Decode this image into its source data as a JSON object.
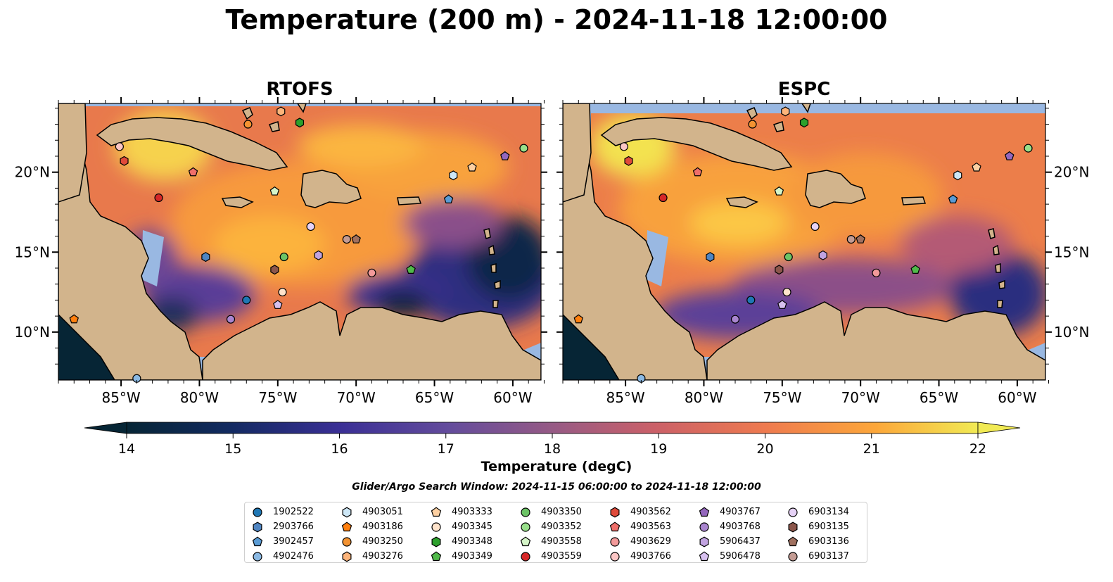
{
  "figure": {
    "title": "Temperature (200 m) - 2024-11-18 12:00:00",
    "panels": [
      {
        "title": "RTOFS"
      },
      {
        "title": "ESPC"
      }
    ],
    "x_ticks": [
      "85°W",
      "80°W",
      "75°W",
      "70°W",
      "65°W",
      "60°W"
    ],
    "y_ticks": [
      "20°N",
      "15°N",
      "10°N"
    ],
    "extent": {
      "lon": [
        -89.0,
        -58.2
      ],
      "lat": [
        7.0,
        24.3
      ]
    },
    "colorbar": {
      "label": "Temperature (degC)",
      "ticks": [
        "14",
        "15",
        "16",
        "17",
        "18",
        "19",
        "20",
        "21",
        "22"
      ],
      "range": [
        14,
        22
      ]
    },
    "search_window": "Glider/Argo Search Window: 2024-11-15 06:00:00 to 2024-11-18 12:00:00",
    "colors": {
      "land": "#d2b48c",
      "no_data": "#99b8e2",
      "deep_cold": "#062535",
      "warm": "#f49c3a"
    }
  },
  "floats": [
    {
      "id": "1902522",
      "marker": "circle",
      "color": "#1f77b4",
      "lon": -77.0,
      "lat": 12.0
    },
    {
      "id": "2903766",
      "marker": "hexagon",
      "color": "#4f85c2",
      "lon": -79.6,
      "lat": 14.7
    },
    {
      "id": "3902457",
      "marker": "pentagon",
      "color": "#5a9bd4",
      "lon": -64.1,
      "lat": 18.3
    },
    {
      "id": "4902476",
      "marker": "circle",
      "color": "#8ab8e2",
      "lon": -84.0,
      "lat": 7.1
    },
    {
      "id": "4903051",
      "marker": "hexagon",
      "color": "#cde7f6",
      "lon": -63.8,
      "lat": 19.8
    },
    {
      "id": "4903186",
      "marker": "pentagon",
      "color": "#ff7f0e",
      "lon": -88.0,
      "lat": 10.8
    },
    {
      "id": "4903250",
      "marker": "circle",
      "color": "#f39332",
      "lon": -76.9,
      "lat": 23.0
    },
    {
      "id": "4903276",
      "marker": "hexagon",
      "color": "#fdb47a",
      "lon": -74.8,
      "lat": 23.8
    },
    {
      "id": "4903333",
      "marker": "pentagon",
      "color": "#fdd0a2",
      "lon": -62.6,
      "lat": 20.3
    },
    {
      "id": "4903345",
      "marker": "circle",
      "color": "#fee3cb",
      "lon": -74.7,
      "lat": 12.5
    },
    {
      "id": "4903348",
      "marker": "hexagon",
      "color": "#2ca02c",
      "lon": -73.6,
      "lat": 23.1
    },
    {
      "id": "4903349",
      "marker": "pentagon",
      "color": "#50b94a",
      "lon": -66.5,
      "lat": 13.9
    },
    {
      "id": "4903350",
      "marker": "circle",
      "color": "#6cc466",
      "lon": -74.6,
      "lat": 14.7
    },
    {
      "id": "4903352",
      "marker": "circle",
      "color": "#98df8a",
      "lon": -59.3,
      "lat": 21.5
    },
    {
      "id": "4903558",
      "marker": "pentagon",
      "color": "#d5f5c8",
      "lon": -75.2,
      "lat": 18.8
    },
    {
      "id": "4903559",
      "marker": "circle",
      "color": "#d62728",
      "lon": -82.6,
      "lat": 18.4
    },
    {
      "id": "4903562",
      "marker": "hexagon",
      "color": "#e04a3a",
      "lon": -84.8,
      "lat": 20.7
    },
    {
      "id": "4903563",
      "marker": "pentagon",
      "color": "#ef6f6a",
      "lon": -80.4,
      "lat": 20.0
    },
    {
      "id": "4903629",
      "marker": "circle",
      "color": "#f39a9a",
      "lon": -69.0,
      "lat": 13.7
    },
    {
      "id": "4903766",
      "marker": "circle",
      "color": "#fbc6c5",
      "lon": -85.1,
      "lat": 21.6
    },
    {
      "id": "4903767",
      "marker": "pentagon",
      "color": "#9467bd",
      "lon": -60.5,
      "lat": 21.0
    },
    {
      "id": "4903768",
      "marker": "circle",
      "color": "#a985cf",
      "lon": -78.0,
      "lat": 10.8
    },
    {
      "id": "5906437",
      "marker": "hexagon",
      "color": "#c1a3e0",
      "lon": -72.4,
      "lat": 14.8
    },
    {
      "id": "5906478",
      "marker": "pentagon",
      "color": "#d7c0ef",
      "lon": -75.0,
      "lat": 11.7
    },
    {
      "id": "6903134",
      "marker": "circle",
      "color": "#e6d2f6",
      "lon": -72.9,
      "lat": 16.6
    },
    {
      "id": "6903135",
      "marker": "hexagon",
      "color": "#8c564b",
      "lon": -75.2,
      "lat": 13.9
    },
    {
      "id": "6903136",
      "marker": "pentagon",
      "color": "#a0705f",
      "lon": -70.0,
      "lat": 15.8
    },
    {
      "id": "6903137",
      "marker": "circle",
      "color": "#c49c94",
      "lon": -70.6,
      "lat": 15.8
    }
  ]
}
